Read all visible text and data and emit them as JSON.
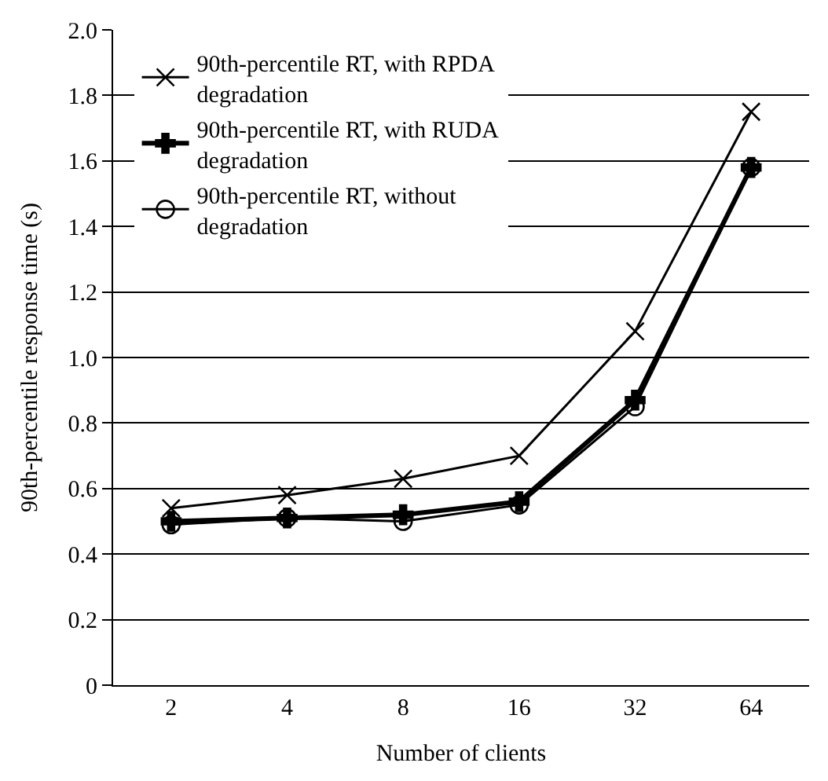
{
  "chart_data": {
    "type": "line",
    "xlabel": "Number of clients",
    "ylabel": "90th-percentile response time (s)",
    "categories": [
      "2",
      "4",
      "8",
      "16",
      "32",
      "64"
    ],
    "series": [
      {
        "name": "90th-percentile RT, with RPDA degradation",
        "color": "#000000",
        "marker": "cross",
        "values": [
          0.54,
          0.58,
          0.63,
          0.7,
          1.08,
          1.75
        ]
      },
      {
        "name": "90th-percentile RT, with RUDA degradation",
        "color": "#000000",
        "marker": "cross",
        "values": [
          0.5,
          0.51,
          0.52,
          0.56,
          0.87,
          1.58
        ]
      },
      {
        "name": "90th-percentile RT, without degradation",
        "color": "#000000",
        "marker": "circle",
        "values": [
          0.49,
          0.51,
          0.5,
          0.55,
          0.85,
          1.58
        ]
      }
    ],
    "ylim": [
      0,
      2.0
    ],
    "yticks": [
      0,
      0.2,
      0.4,
      0.6,
      0.8,
      {
        "value": 1.0,
        "label": "1.0"
      },
      1.2,
      1.4,
      1.6,
      1.8,
      {
        "value": 2.0,
        "label": "2.0"
      }
    ],
    "grid": "y",
    "legend": "top left",
    "line_style": "solid"
  }
}
